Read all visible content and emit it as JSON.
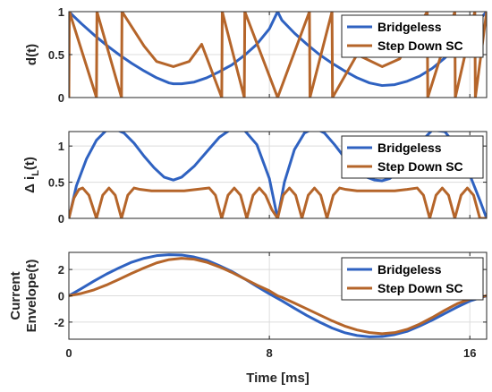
{
  "chart_data": [
    {
      "type": "line",
      "ylabel": "d(t)",
      "xlim": [
        0,
        16.67
      ],
      "ylim": [
        0,
        1
      ],
      "xticks": [
        0,
        8,
        16
      ],
      "xtick_labels": [
        "",
        "",
        ""
      ],
      "yticks": [
        0,
        0.5,
        1
      ],
      "ytick_labels": [
        "0",
        "0.5",
        "1"
      ],
      "grid": true,
      "legend": "top-right",
      "series": [
        {
          "name": "Bridgeless",
          "color": "#2f62c1",
          "x": [
            0,
            0.5,
            1,
            1.5,
            2,
            2.5,
            3,
            3.5,
            4,
            4.17,
            4.5,
            5,
            5.5,
            6,
            6.5,
            7,
            7.5,
            8,
            8.33,
            8.5,
            9,
            9.5,
            10,
            10.5,
            11,
            11.5,
            12,
            12.5,
            13,
            13.5,
            14,
            14.5,
            15,
            15.5,
            16,
            16.67
          ],
          "y": [
            1.0,
            0.86,
            0.73,
            0.61,
            0.5,
            0.4,
            0.31,
            0.23,
            0.17,
            0.16,
            0.16,
            0.18,
            0.23,
            0.3,
            0.38,
            0.49,
            0.62,
            0.8,
            1.0,
            0.9,
            0.75,
            0.62,
            0.5,
            0.4,
            0.31,
            0.23,
            0.17,
            0.14,
            0.15,
            0.19,
            0.25,
            0.34,
            0.46,
            0.6,
            0.78,
            1.0
          ]
        },
        {
          "name": "Step Down SC",
          "color": "#b5652a",
          "x": [
            0,
            0.02,
            1.1,
            1.12,
            2.1,
            2.12,
            3.0,
            3.5,
            4.17,
            4.8,
            5.3,
            6.1,
            6.12,
            7.0,
            7.02,
            8.33,
            9.6,
            9.62,
            10.5,
            10.52,
            11.5,
            12.5,
            13.2,
            14.3,
            14.32,
            15.4,
            15.42,
            16.2,
            16.22,
            16.67
          ],
          "y": [
            0.0,
            1.0,
            0.0,
            1.0,
            0.0,
            1.0,
            0.6,
            0.42,
            0.36,
            0.42,
            0.62,
            0.0,
            1.0,
            0.0,
            1.0,
            0.0,
            1.0,
            0.0,
            1.0,
            0.0,
            0.5,
            0.36,
            0.45,
            1.0,
            0.0,
            1.0,
            0.0,
            1.0,
            0.0,
            1.0
          ]
        }
      ]
    },
    {
      "type": "line",
      "ylabel": "Δ i_L(t)",
      "xlim": [
        0,
        16.67
      ],
      "ylim": [
        0,
        1.2
      ],
      "xticks": [
        0,
        8,
        16
      ],
      "xtick_labels": [
        "",
        "",
        ""
      ],
      "yticks": [
        0,
        0.5,
        1
      ],
      "ytick_labels": [
        "0",
        "0.5",
        "1"
      ],
      "grid": true,
      "legend": "top-right",
      "series": [
        {
          "name": "Bridgeless",
          "color": "#2f62c1",
          "x": [
            0,
            0.3,
            0.7,
            1.1,
            1.5,
            1.8,
            2.2,
            2.6,
            3.0,
            3.4,
            3.8,
            4.17,
            4.5,
            5.0,
            5.5,
            6.0,
            6.5,
            7.0,
            7.5,
            8.0,
            8.33,
            8.6,
            9.0,
            9.4,
            9.8,
            10.2,
            10.6,
            11.0,
            11.4,
            11.8,
            12.2,
            12.5,
            12.8,
            13.2,
            13.6,
            14.0,
            14.5,
            15.0,
            15.5,
            16.0,
            16.4,
            16.67
          ],
          "y": [
            0.0,
            0.45,
            0.82,
            1.08,
            1.22,
            1.24,
            1.18,
            1.04,
            0.86,
            0.7,
            0.57,
            0.53,
            0.57,
            0.72,
            0.92,
            1.12,
            1.24,
            1.22,
            1.02,
            0.55,
            0.0,
            0.5,
            0.95,
            1.18,
            1.25,
            1.18,
            1.02,
            0.84,
            0.68,
            0.58,
            0.53,
            0.52,
            0.55,
            0.66,
            0.84,
            1.04,
            1.22,
            1.2,
            0.98,
            0.6,
            0.25,
            0.0
          ]
        },
        {
          "name": "Step Down SC",
          "color": "#b5652a",
          "x": [
            0,
            0.2,
            0.4,
            0.55,
            0.8,
            1.1,
            1.35,
            1.6,
            1.85,
            2.1,
            2.35,
            2.6,
            2.85,
            3.3,
            3.8,
            4.17,
            4.6,
            5.1,
            5.6,
            5.85,
            6.1,
            6.35,
            6.6,
            6.85,
            7.1,
            7.35,
            7.6,
            7.85,
            8.1,
            8.33,
            8.55,
            8.8,
            9.05,
            9.3,
            9.55,
            9.8,
            10.05,
            10.3,
            10.55,
            10.8,
            11.05,
            11.5,
            12.0,
            12.5,
            13.0,
            13.5,
            13.9,
            14.15,
            14.4,
            14.65,
            14.9,
            15.15,
            15.4,
            15.65,
            15.9,
            16.15,
            16.4,
            16.67
          ],
          "y": [
            0.0,
            0.28,
            0.4,
            0.42,
            0.32,
            0.0,
            0.32,
            0.42,
            0.32,
            0.0,
            0.32,
            0.42,
            0.4,
            0.38,
            0.38,
            0.38,
            0.38,
            0.4,
            0.42,
            0.32,
            0.0,
            0.32,
            0.42,
            0.32,
            0.0,
            0.32,
            0.42,
            0.32,
            0.12,
            0.0,
            0.32,
            0.42,
            0.32,
            0.0,
            0.32,
            0.42,
            0.32,
            0.0,
            0.32,
            0.42,
            0.4,
            0.38,
            0.38,
            0.38,
            0.38,
            0.4,
            0.42,
            0.32,
            0.0,
            0.32,
            0.42,
            0.32,
            0.0,
            0.32,
            0.42,
            0.32,
            0.0,
            0.0
          ]
        }
      ]
    },
    {
      "type": "line",
      "ylabel": "Current Envelope(t)",
      "ylabel_lines": [
        "Current",
        "Envelope(t)"
      ],
      "xlabel": "Time [ms]",
      "xlim": [
        0,
        16.67
      ],
      "ylim": [
        -3.3,
        3.3
      ],
      "xticks": [
        0,
        8,
        16
      ],
      "xtick_labels": [
        "0",
        "8",
        "16"
      ],
      "yticks": [
        -2,
        0,
        2
      ],
      "ytick_labels": [
        "-2",
        "0",
        "2"
      ],
      "grid": true,
      "legend": "top-right",
      "series": [
        {
          "name": "Bridgeless",
          "color": "#2f62c1",
          "x": [
            0,
            0.5,
            1,
            1.5,
            2,
            2.5,
            3,
            3.5,
            4,
            4.5,
            5,
            5.5,
            6,
            6.5,
            7,
            7.5,
            8,
            8.33,
            8.5,
            9,
            9.5,
            10,
            10.5,
            11,
            11.5,
            12,
            12.5,
            13,
            13.5,
            14,
            14.5,
            15,
            15.5,
            16,
            16.67
          ],
          "y": [
            0.0,
            0.55,
            1.12,
            1.65,
            2.12,
            2.55,
            2.85,
            3.05,
            3.12,
            3.1,
            2.95,
            2.7,
            2.3,
            1.85,
            1.3,
            0.72,
            0.15,
            -0.2,
            -0.38,
            -0.95,
            -1.5,
            -2.0,
            -2.45,
            -2.8,
            -3.02,
            -3.12,
            -3.1,
            -2.95,
            -2.7,
            -2.3,
            -1.85,
            -1.35,
            -0.85,
            -0.4,
            0.0
          ]
        },
        {
          "name": "Step Down SC",
          "color": "#b5652a",
          "x": [
            0,
            0.5,
            1,
            1.5,
            2,
            2.5,
            3,
            3.5,
            4,
            4.5,
            5,
            5.5,
            6,
            6.5,
            7,
            7.5,
            8,
            8.33,
            8.5,
            9,
            9.5,
            10,
            10.5,
            11,
            11.5,
            12,
            12.5,
            13,
            13.5,
            14,
            14.5,
            15,
            15.5,
            16,
            16.67
          ],
          "y": [
            0.0,
            0.18,
            0.45,
            0.82,
            1.25,
            1.7,
            2.12,
            2.5,
            2.75,
            2.85,
            2.78,
            2.55,
            2.2,
            1.78,
            1.3,
            0.82,
            0.38,
            0.0,
            -0.12,
            -0.55,
            -1.0,
            -1.45,
            -1.9,
            -2.3,
            -2.6,
            -2.8,
            -2.88,
            -2.8,
            -2.55,
            -2.15,
            -1.65,
            -1.1,
            -0.6,
            -0.25,
            0.0
          ]
        }
      ]
    }
  ]
}
